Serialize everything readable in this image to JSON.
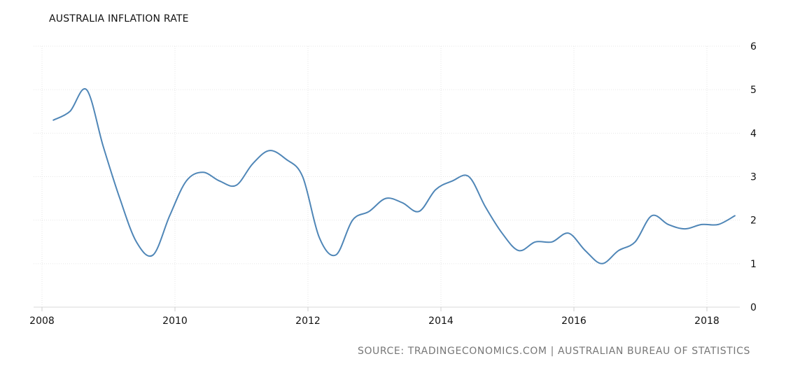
{
  "chart_data": {
    "type": "line",
    "title": "AUSTRALIA INFLATION RATE",
    "xlabel": "",
    "ylabel": "",
    "xlim": [
      2008,
      2018.75
    ],
    "ylim": [
      0,
      6
    ],
    "grid": true,
    "x_ticks": [
      2008,
      2010,
      2012,
      2014,
      2016,
      2018
    ],
    "x_tick_labels": [
      "2008",
      "2010",
      "2012",
      "2014",
      "2016",
      "2018"
    ],
    "y_ticks": [
      0,
      1,
      2,
      3,
      4,
      5,
      6
    ],
    "y_tick_labels": [
      "0",
      "1",
      "2",
      "3",
      "4",
      "5",
      "6"
    ],
    "series": [
      {
        "color": "#4f86b7",
        "x": [
          2008.17,
          2008.42,
          2008.67,
          2008.92,
          2009.17,
          2009.42,
          2009.67,
          2009.92,
          2010.17,
          2010.42,
          2010.67,
          2010.92,
          2011.17,
          2011.42,
          2011.67,
          2011.92,
          2012.17,
          2012.42,
          2012.67,
          2012.92,
          2013.17,
          2013.42,
          2013.67,
          2013.92,
          2014.17,
          2014.42,
          2014.67,
          2014.92,
          2015.17,
          2015.42,
          2015.67,
          2015.92,
          2016.17,
          2016.42,
          2016.67,
          2016.92,
          2017.17,
          2017.42,
          2017.67,
          2017.92,
          2018.17,
          2018.42
        ],
        "y": [
          4.3,
          4.5,
          5.0,
          3.7,
          2.5,
          1.5,
          1.2,
          2.1,
          2.9,
          3.1,
          2.9,
          2.8,
          3.3,
          3.6,
          3.4,
          3.0,
          1.6,
          1.2,
          2.0,
          2.2,
          2.5,
          2.4,
          2.2,
          2.7,
          2.9,
          3.0,
          2.3,
          1.7,
          1.3,
          1.5,
          1.5,
          1.7,
          1.3,
          1.0,
          1.3,
          1.5,
          2.1,
          1.9,
          1.8,
          1.9,
          1.9,
          2.1
        ]
      }
    ]
  },
  "source": "SOURCE: TRADINGECONOMICS.COM | AUSTRALIAN BUREAU OF STATISTICS"
}
